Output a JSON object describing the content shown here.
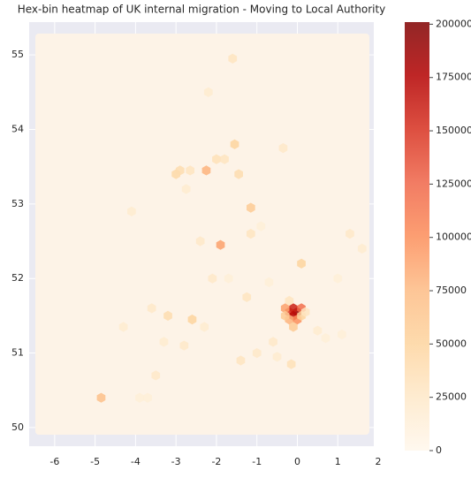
{
  "chart_data": {
    "type": "hexbin",
    "title": "Hex-bin heatmap of UK internal migration - Moving to Local Authority",
    "xlim": [
      -6.63,
      1.89
    ],
    "ylim": [
      49.75,
      55.44
    ],
    "xticks": [
      -6,
      -5,
      -4,
      -3,
      -2,
      -1,
      0,
      1,
      2
    ],
    "yticks": [
      50,
      51,
      52,
      53,
      54,
      55
    ],
    "clim": [
      0,
      201000
    ],
    "cticks": [
      0,
      25000,
      50000,
      75000,
      100000,
      125000,
      150000,
      175000,
      200000
    ],
    "colormap": [
      "#fff7ec",
      "#fee8c8",
      "#fdd49e",
      "#fdbb84",
      "#fc8d59",
      "#ef6548",
      "#d7301f",
      "#b30000",
      "#7f0000"
    ],
    "grid": true,
    "x": [
      -0.2,
      0.0,
      -0.1,
      -0.1,
      0.1,
      -0.3,
      -0.2,
      0.0,
      -0.3,
      0.1,
      -0.1,
      -0.2,
      0.2,
      -1.9,
      -2.25,
      -1.55,
      -3.0,
      -4.85,
      -2.6,
      -1.15,
      0.1,
      -1.45,
      -1.6,
      -3.2,
      -1.4,
      -0.15,
      -1.25,
      -1.15,
      -0.35,
      1.3,
      -3.5,
      -2.9,
      -2.65,
      -2.0,
      -1.8,
      -2.1,
      -4.1,
      -3.6,
      -4.3,
      -3.9,
      -2.4,
      -0.7,
      0.5,
      1.0,
      1.6,
      1.1,
      -0.5,
      -2.8,
      -3.3,
      -1.0,
      -2.3,
      -0.9,
      0.7,
      -2.75,
      -1.7,
      -3.7,
      -2.2,
      -0.6
    ],
    "y": [
      51.55,
      51.55,
      51.6,
      51.5,
      51.6,
      51.6,
      51.45,
      51.45,
      51.5,
      51.5,
      51.35,
      51.7,
      51.55,
      52.45,
      53.45,
      53.8,
      53.4,
      50.4,
      51.45,
      52.95,
      52.2,
      53.4,
      54.95,
      51.5,
      50.9,
      50.85,
      51.75,
      52.6,
      53.75,
      52.6,
      50.7,
      53.45,
      53.45,
      53.6,
      53.6,
      52.0,
      52.9,
      51.6,
      51.35,
      50.4,
      52.5,
      51.95,
      51.3,
      52.0,
      52.4,
      51.25,
      50.95,
      51.1,
      51.15,
      51.0,
      51.35,
      52.7,
      51.2,
      53.2,
      52.0,
      50.4,
      54.5,
      51.15
    ],
    "values": [
      150000,
      190000,
      160000,
      170000,
      120000,
      90000,
      80000,
      100000,
      60000,
      50000,
      60000,
      30000,
      30000,
      90000,
      80000,
      50000,
      45000,
      70000,
      50000,
      60000,
      50000,
      40000,
      30000,
      40000,
      30000,
      35000,
      30000,
      30000,
      25000,
      25000,
      25000,
      40000,
      30000,
      35000,
      30000,
      25000,
      20000,
      25000,
      20000,
      15000,
      25000,
      15000,
      20000,
      15000,
      20000,
      15000,
      20000,
      25000,
      20000,
      25000,
      20000,
      15000,
      15000,
      20000,
      15000,
      15000,
      20000,
      25000
    ]
  }
}
